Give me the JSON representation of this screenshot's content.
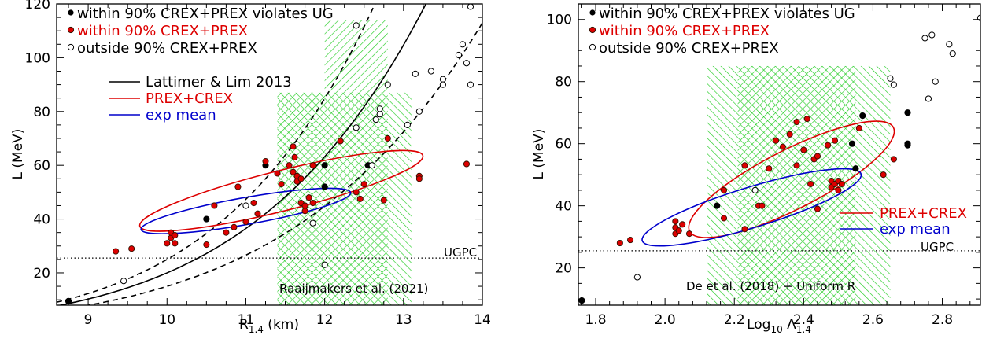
{
  "chart_data": [
    {
      "type": "scatter",
      "xlabel": "R",
      "xlabel_sub": "1.4",
      "xlabel_unit": " (km)",
      "ylabel": "L (MeV)",
      "xlim": [
        8.6,
        14.0
      ],
      "ylim": [
        8,
        120
      ],
      "xticks": [
        "9",
        "10",
        "11",
        "12",
        "13",
        "14"
      ],
      "yticks": [
        "20",
        "40",
        "60",
        "80",
        "100",
        "120"
      ],
      "marker_legend": [
        {
          "label": "within 90% CREX+PREX violates UG",
          "color": "#000000",
          "marker": "filled-black"
        },
        {
          "label": "within 90% CREX+PREX",
          "color": "#dd0000",
          "marker": "filled-red"
        },
        {
          "label": "outside 90% CREX+PREX",
          "color": "#000000",
          "marker": "open"
        }
      ],
      "line_legend": [
        {
          "label": "Lattimer & Lim 2013",
          "color": "#000000"
        },
        {
          "label": "PREX+CREX",
          "color": "#dd0000"
        },
        {
          "label": "exp mean",
          "color": "#0000cc"
        }
      ],
      "shaded_bands": [
        {
          "x": [
            11.4,
            13.1
          ],
          "y": [
            8,
            87
          ],
          "hatch": "backslash",
          "color": "#22cc22"
        },
        {
          "x": [
            11.4,
            12.8
          ],
          "y": [
            8,
            87
          ],
          "hatch": "slash",
          "color": "#22cc22"
        },
        {
          "x": [
            12.0,
            12.8
          ],
          "y": [
            87,
            114
          ],
          "hatch": "slash",
          "color": "#22cc22"
        }
      ],
      "ugpc_line": {
        "y": 25.5,
        "label": "UGPC"
      },
      "band_source_label": "Raaijmakers et al. (2021)",
      "lattimer_curves": {
        "center": {
          "a": 20,
          "b": 6.31
        },
        "lower": {
          "a": 15,
          "b": 6.0
        },
        "upper": {
          "a": 25,
          "b": 6.7
        }
      },
      "ellipses": [
        {
          "name": "PREX+CREX",
          "color": "#dd0000",
          "cx": 11.45,
          "cy": 50,
          "rx": 1.85,
          "ry": 14,
          "angle_deg": 0,
          "pts": [
            [
              10.1,
              31
            ],
            [
              10.5,
              36
            ],
            [
              11.0,
              41
            ],
            [
              11.5,
              48
            ],
            [
              12.0,
              55
            ],
            [
              12.5,
              62
            ],
            [
              12.85,
              70
            ],
            [
              12.6,
              67
            ],
            [
              12.2,
              59
            ]
          ]
        },
        {
          "name": "exp mean",
          "color": "#0000cc"
        }
      ],
      "points": [
        {
          "x": 8.75,
          "y": 9.5,
          "c": "black"
        },
        {
          "x": 9.35,
          "y": 28,
          "c": "red"
        },
        {
          "x": 9.55,
          "y": 29,
          "c": "red"
        },
        {
          "x": 9.45,
          "y": 17,
          "c": "open"
        },
        {
          "x": 10.0,
          "y": 31,
          "c": "red"
        },
        {
          "x": 10.05,
          "y": 33,
          "c": "red"
        },
        {
          "x": 10.05,
          "y": 35,
          "c": "red"
        },
        {
          "x": 10.1,
          "y": 31,
          "c": "red"
        },
        {
          "x": 10.1,
          "y": 34,
          "c": "red"
        },
        {
          "x": 10.5,
          "y": 30.5,
          "c": "red"
        },
        {
          "x": 10.5,
          "y": 40,
          "c": "black"
        },
        {
          "x": 10.6,
          "y": 45,
          "c": "red"
        },
        {
          "x": 10.75,
          "y": 35,
          "c": "red"
        },
        {
          "x": 10.85,
          "y": 37,
          "c": "red"
        },
        {
          "x": 10.9,
          "y": 52,
          "c": "red"
        },
        {
          "x": 11.0,
          "y": 39,
          "c": "red"
        },
        {
          "x": 11.0,
          "y": 45,
          "c": "open"
        },
        {
          "x": 11.1,
          "y": 46,
          "c": "red"
        },
        {
          "x": 11.15,
          "y": 42,
          "c": "red"
        },
        {
          "x": 11.25,
          "y": 60,
          "c": "black"
        },
        {
          "x": 11.25,
          "y": 61.5,
          "c": "red"
        },
        {
          "x": 11.4,
          "y": 57,
          "c": "red"
        },
        {
          "x": 11.45,
          "y": 53,
          "c": "red"
        },
        {
          "x": 11.55,
          "y": 60,
          "c": "red"
        },
        {
          "x": 11.6,
          "y": 67,
          "c": "red"
        },
        {
          "x": 11.62,
          "y": 63,
          "c": "red"
        },
        {
          "x": 11.6,
          "y": 57.5,
          "c": "red"
        },
        {
          "x": 11.65,
          "y": 56,
          "c": "red"
        },
        {
          "x": 11.65,
          "y": 54,
          "c": "red"
        },
        {
          "x": 11.7,
          "y": 55,
          "c": "red"
        },
        {
          "x": 11.7,
          "y": 46,
          "c": "red"
        },
        {
          "x": 11.75,
          "y": 45,
          "c": "red"
        },
        {
          "x": 11.8,
          "y": 48,
          "c": "red"
        },
        {
          "x": 11.75,
          "y": 43,
          "c": "red"
        },
        {
          "x": 11.85,
          "y": 46,
          "c": "red"
        },
        {
          "x": 11.85,
          "y": 60,
          "c": "red"
        },
        {
          "x": 11.85,
          "y": 38.5,
          "c": "open"
        },
        {
          "x": 12.0,
          "y": 52,
          "c": "black"
        },
        {
          "x": 12.0,
          "y": 60,
          "c": "black"
        },
        {
          "x": 12.0,
          "y": 23,
          "c": "open"
        },
        {
          "x": 12.2,
          "y": 69,
          "c": "red"
        },
        {
          "x": 12.4,
          "y": 112,
          "c": "open"
        },
        {
          "x": 12.4,
          "y": 74,
          "c": "open"
        },
        {
          "x": 12.4,
          "y": 50,
          "c": "red"
        },
        {
          "x": 12.45,
          "y": 47.5,
          "c": "red"
        },
        {
          "x": 12.5,
          "y": 53,
          "c": "red"
        },
        {
          "x": 12.55,
          "y": 60,
          "c": "black"
        },
        {
          "x": 12.6,
          "y": 60,
          "c": "open"
        },
        {
          "x": 12.65,
          "y": 77,
          "c": "open"
        },
        {
          "x": 12.7,
          "y": 79,
          "c": "open"
        },
        {
          "x": 12.7,
          "y": 81,
          "c": "open"
        },
        {
          "x": 12.75,
          "y": 47,
          "c": "red"
        },
        {
          "x": 12.8,
          "y": 90,
          "c": "open"
        },
        {
          "x": 12.8,
          "y": 70,
          "c": "red"
        },
        {
          "x": 13.05,
          "y": 75,
          "c": "open"
        },
        {
          "x": 13.15,
          "y": 94,
          "c": "open"
        },
        {
          "x": 13.2,
          "y": 56,
          "c": "red"
        },
        {
          "x": 13.2,
          "y": 55,
          "c": "red"
        },
        {
          "x": 13.2,
          "y": 80,
          "c": "open"
        },
        {
          "x": 13.35,
          "y": 95,
          "c": "open"
        },
        {
          "x": 13.5,
          "y": 92,
          "c": "open"
        },
        {
          "x": 13.5,
          "y": 90,
          "c": "open"
        },
        {
          "x": 13.7,
          "y": 101,
          "c": "open"
        },
        {
          "x": 13.75,
          "y": 105,
          "c": "open"
        },
        {
          "x": 13.8,
          "y": 98,
          "c": "open"
        },
        {
          "x": 13.85,
          "y": 119,
          "c": "open"
        },
        {
          "x": 13.8,
          "y": 60.5,
          "c": "red"
        },
        {
          "x": 13.85,
          "y": 90,
          "c": "open"
        }
      ]
    },
    {
      "type": "scatter",
      "xlabel": "Log",
      "xlabel_sub1": "10",
      "xlabel_mid": " Λ",
      "xlabel_sub2": "1.4",
      "ylabel": "L (MeV)",
      "xlim": [
        1.75,
        2.91
      ],
      "ylim": [
        8,
        105
      ],
      "xticks": [
        "1.8",
        "2.0",
        "2.2",
        "2.4",
        "2.6",
        "2.8"
      ],
      "yticks": [
        "20",
        "40",
        "60",
        "80",
        "100"
      ],
      "marker_legend": [
        {
          "label": "within 90% CREX+PREX violates UG",
          "color": "#000000",
          "marker": "filled-black"
        },
        {
          "label": "within 90% CREX+PREX",
          "color": "#dd0000",
          "marker": "filled-red"
        },
        {
          "label": "outside 90% CREX+PREX",
          "color": "#000000",
          "marker": "open"
        }
      ],
      "line_legend": [
        {
          "label": "PREX+CREX",
          "color": "#dd0000"
        },
        {
          "label": "exp mean",
          "color": "#0000cc"
        }
      ],
      "shaded_bands": [
        {
          "x": [
            2.12,
            2.65
          ],
          "y": [
            8,
            85
          ],
          "hatch": "backslash",
          "color": "#22cc22"
        },
        {
          "x": [
            2.21,
            2.55
          ],
          "y": [
            8,
            85
          ],
          "hatch": "slash",
          "color": "#22cc22"
        }
      ],
      "ugpc_line": {
        "y": 25.5,
        "label": "UGPC"
      },
      "band_source_label": "De et al. (2018) + Uniform R",
      "points": [
        {
          "x": 1.76,
          "y": 9.5,
          "c": "black"
        },
        {
          "x": 1.87,
          "y": 28,
          "c": "red"
        },
        {
          "x": 1.9,
          "y": 29,
          "c": "red"
        },
        {
          "x": 1.92,
          "y": 17,
          "c": "open"
        },
        {
          "x": 2.03,
          "y": 31,
          "c": "red"
        },
        {
          "x": 2.03,
          "y": 33,
          "c": "red"
        },
        {
          "x": 2.03,
          "y": 35,
          "c": "red"
        },
        {
          "x": 2.04,
          "y": 32,
          "c": "red"
        },
        {
          "x": 2.05,
          "y": 34,
          "c": "red"
        },
        {
          "x": 2.07,
          "y": 31,
          "c": "red"
        },
        {
          "x": 2.15,
          "y": 40,
          "c": "black"
        },
        {
          "x": 2.17,
          "y": 36,
          "c": "red"
        },
        {
          "x": 2.17,
          "y": 45,
          "c": "red"
        },
        {
          "x": 2.23,
          "y": 32.5,
          "c": "red"
        },
        {
          "x": 2.23,
          "y": 53,
          "c": "red"
        },
        {
          "x": 2.26,
          "y": 45,
          "c": "open"
        },
        {
          "x": 2.27,
          "y": 40,
          "c": "red"
        },
        {
          "x": 2.28,
          "y": 40,
          "c": "red"
        },
        {
          "x": 2.3,
          "y": 52,
          "c": "red"
        },
        {
          "x": 2.32,
          "y": 61,
          "c": "red"
        },
        {
          "x": 2.34,
          "y": 59,
          "c": "red"
        },
        {
          "x": 2.36,
          "y": 63,
          "c": "red"
        },
        {
          "x": 2.38,
          "y": 53,
          "c": "red"
        },
        {
          "x": 2.38,
          "y": 67,
          "c": "red"
        },
        {
          "x": 2.4,
          "y": 58,
          "c": "red"
        },
        {
          "x": 2.41,
          "y": 68,
          "c": "red"
        },
        {
          "x": 2.42,
          "y": 47,
          "c": "red"
        },
        {
          "x": 2.43,
          "y": 55,
          "c": "red"
        },
        {
          "x": 2.44,
          "y": 56,
          "c": "red"
        },
        {
          "x": 2.44,
          "y": 39,
          "c": "red"
        },
        {
          "x": 2.47,
          "y": 59.5,
          "c": "red"
        },
        {
          "x": 2.48,
          "y": 46,
          "c": "red"
        },
        {
          "x": 2.48,
          "y": 48,
          "c": "red"
        },
        {
          "x": 2.49,
          "y": 47,
          "c": "red"
        },
        {
          "x": 2.49,
          "y": 61,
          "c": "red"
        },
        {
          "x": 2.5,
          "y": 45,
          "c": "red"
        },
        {
          "x": 2.5,
          "y": 48,
          "c": "red"
        },
        {
          "x": 2.51,
          "y": 47,
          "c": "red"
        },
        {
          "x": 2.54,
          "y": 60,
          "c": "black"
        },
        {
          "x": 2.55,
          "y": 52,
          "c": "black"
        },
        {
          "x": 2.56,
          "y": 65,
          "c": "red"
        },
        {
          "x": 2.57,
          "y": 69,
          "c": "black"
        },
        {
          "x": 2.63,
          "y": 50,
          "c": "red"
        },
        {
          "x": 2.65,
          "y": 81,
          "c": "open"
        },
        {
          "x": 2.66,
          "y": 79,
          "c": "open"
        },
        {
          "x": 2.66,
          "y": 55,
          "c": "red"
        },
        {
          "x": 2.7,
          "y": 70,
          "c": "black"
        },
        {
          "x": 2.7,
          "y": 60,
          "c": "black"
        },
        {
          "x": 2.7,
          "y": 59.5,
          "c": "black"
        },
        {
          "x": 2.75,
          "y": 94,
          "c": "open"
        },
        {
          "x": 2.76,
          "y": 74.5,
          "c": "open"
        },
        {
          "x": 2.77,
          "y": 95,
          "c": "open"
        },
        {
          "x": 2.78,
          "y": 80,
          "c": "open"
        },
        {
          "x": 2.82,
          "y": 92,
          "c": "open"
        },
        {
          "x": 2.83,
          "y": 89,
          "c": "open"
        },
        {
          "x": 2.91,
          "y": 100.5,
          "c": "open"
        }
      ]
    }
  ]
}
